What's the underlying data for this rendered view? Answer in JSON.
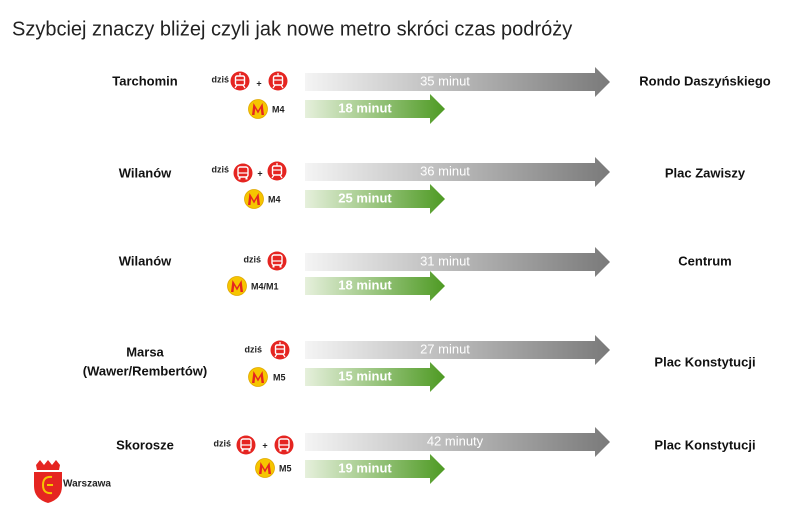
{
  "title": "Szybciej znaczy bliżej czyli jak nowe metro skróci czas podróży",
  "routes": [
    {
      "from": [
        "Tarchomin"
      ],
      "to": "Rondo Daszyńskiego",
      "today_label": "dziś",
      "plus": "+",
      "today_time": "35 minut",
      "metro_line": "M4",
      "metro_time": "18 minut"
    },
    {
      "from": [
        "Wilanów"
      ],
      "to": "Plac Zawiszy",
      "today_label": "dziś",
      "plus": "+",
      "today_time": "36 minut",
      "metro_line": "M4",
      "metro_time": "25 minut"
    },
    {
      "from": [
        "Wilanów"
      ],
      "to": "Centrum",
      "today_label": "dziś",
      "today_time": "31 minut",
      "metro_line": "M4/M1",
      "metro_time": "18 minut"
    },
    {
      "from": [
        "Marsa",
        "(Wawer/Rembertów)"
      ],
      "to": "Plac Konstytucji",
      "today_label": "dziś",
      "today_time": "27 minut",
      "metro_line": "M5",
      "metro_time": "15 minut"
    },
    {
      "from": [
        "Skorosze"
      ],
      "to": "Plac Konstytucji",
      "today_label": "dziś",
      "plus": "+",
      "today_time": "42 minuty",
      "metro_line": "M5",
      "metro_time": "19 minut"
    }
  ],
  "logo": {
    "text": "Warszawa"
  }
}
